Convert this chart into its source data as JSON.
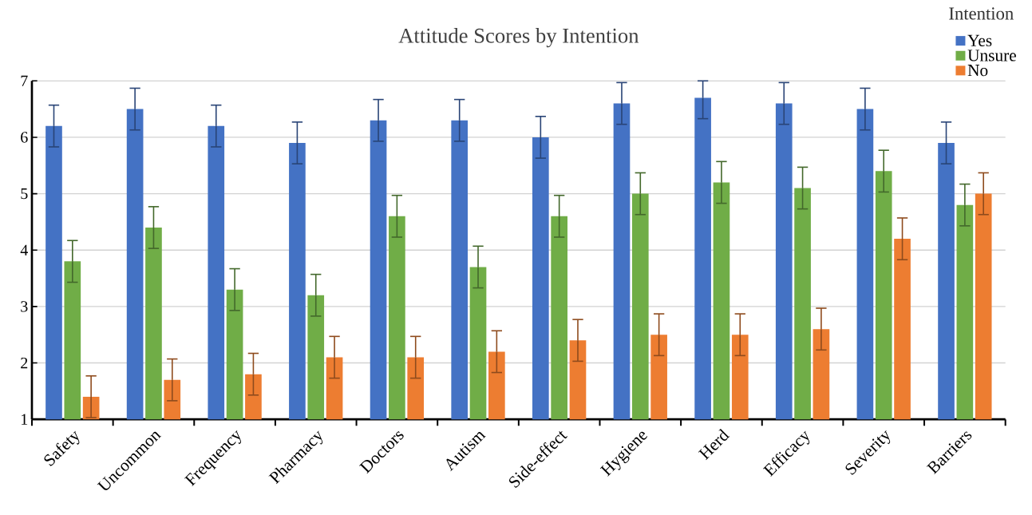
{
  "chart_data": {
    "type": "bar",
    "title": "Attitude Scores by Intention",
    "legend_title": "Intention",
    "categories": [
      "Safety",
      "Uncommon",
      "Frequency",
      "Pharmacy",
      "Doctors",
      "Autism",
      "Side-effect",
      "Hygiene",
      "Herd",
      "Efficacy",
      "Severity",
      "Barriers"
    ],
    "series": [
      {
        "name": "Yes",
        "color": "#4472c4",
        "values": [
          6.2,
          6.5,
          6.2,
          5.9,
          6.3,
          6.3,
          6.0,
          6.6,
          6.7,
          6.6,
          6.5,
          5.9
        ],
        "errors": [
          0.37,
          0.37,
          0.37,
          0.37,
          0.37,
          0.37,
          0.37,
          0.37,
          [
            6.33,
            7
          ],
          0.37,
          0.37,
          0.37
        ]
      },
      {
        "name": "Unsure",
        "color": "#70ad47",
        "values": [
          3.8,
          4.4,
          3.3,
          3.2,
          4.6,
          3.7,
          4.6,
          5.0,
          5.2,
          5.1,
          5.4,
          4.8
        ],
        "errors": [
          0.37,
          0.37,
          0.37,
          0.37,
          0.37,
          0.37,
          0.37,
          0.37,
          0.37,
          0.37,
          0.37,
          0.37
        ]
      },
      {
        "name": "No",
        "color": "#ed7d31",
        "values": [
          1.4,
          1.7,
          1.8,
          2.1,
          2.1,
          2.2,
          2.4,
          2.5,
          2.5,
          2.6,
          4.2,
          5.0
        ],
        "errors": [
          0.37,
          0.37,
          0.37,
          0.37,
          0.37,
          0.37,
          0.37,
          0.37,
          0.37,
          0.37,
          0.37,
          0.37
        ]
      }
    ],
    "ylim": [
      1,
      7
    ],
    "yticks": [
      1,
      2,
      3,
      4,
      5,
      6,
      7
    ],
    "grid": "y",
    "legend": "top right"
  }
}
